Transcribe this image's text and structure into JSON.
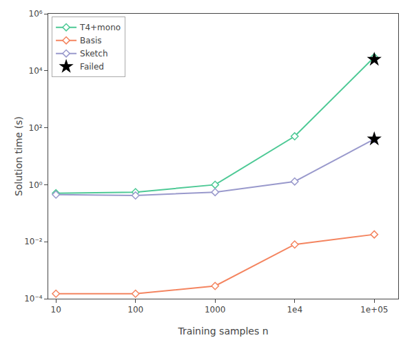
{
  "chart_data": {
    "type": "line",
    "xlabel": "Training samples n",
    "ylabel": "Solution time (s)",
    "x": [
      10,
      100,
      1000,
      10000,
      100000
    ],
    "series": [
      {
        "name": "T4+mono",
        "color": "#4dc995",
        "marker": "diamond",
        "values": [
          0.5,
          0.55,
          1.0,
          50.0,
          30000.0
        ]
      },
      {
        "name": "Basis",
        "color": "#f4845f",
        "marker": "diamond",
        "values": [
          0.00015,
          0.00015,
          0.00028,
          0.008,
          0.018
        ]
      },
      {
        "name": "Sketch",
        "color": "#9999cc",
        "marker": "diamond",
        "values": [
          0.45,
          0.42,
          0.55,
          1.3,
          40.0
        ]
      },
      {
        "name": "Failed",
        "type": "scatter",
        "color": "#000000",
        "marker": "star",
        "x": [
          100000,
          100000
        ],
        "values": [
          25000.0,
          40.0
        ]
      }
    ],
    "log": true,
    "xlim": [
      8,
      200000
    ],
    "ylim": [
      0.0001,
      1000000.0
    ],
    "xticks": [
      10,
      100,
      1000,
      {
        "value": 10000,
        "label": "1e4"
      },
      {
        "value": 100000,
        "label": "1e+05"
      }
    ],
    "yticks": [
      {
        "value": 0.0001,
        "label": "10⁻⁴"
      },
      {
        "value": 0.01,
        "label": "10⁻²"
      },
      {
        "value": 1,
        "label": "10⁰"
      },
      {
        "value": 100,
        "label": "10²"
      },
      {
        "value": 10000.0,
        "label": "10⁴"
      },
      {
        "value": 1000000.0,
        "label": "10⁶"
      }
    ],
    "grid": false,
    "legend": "upper left"
  }
}
